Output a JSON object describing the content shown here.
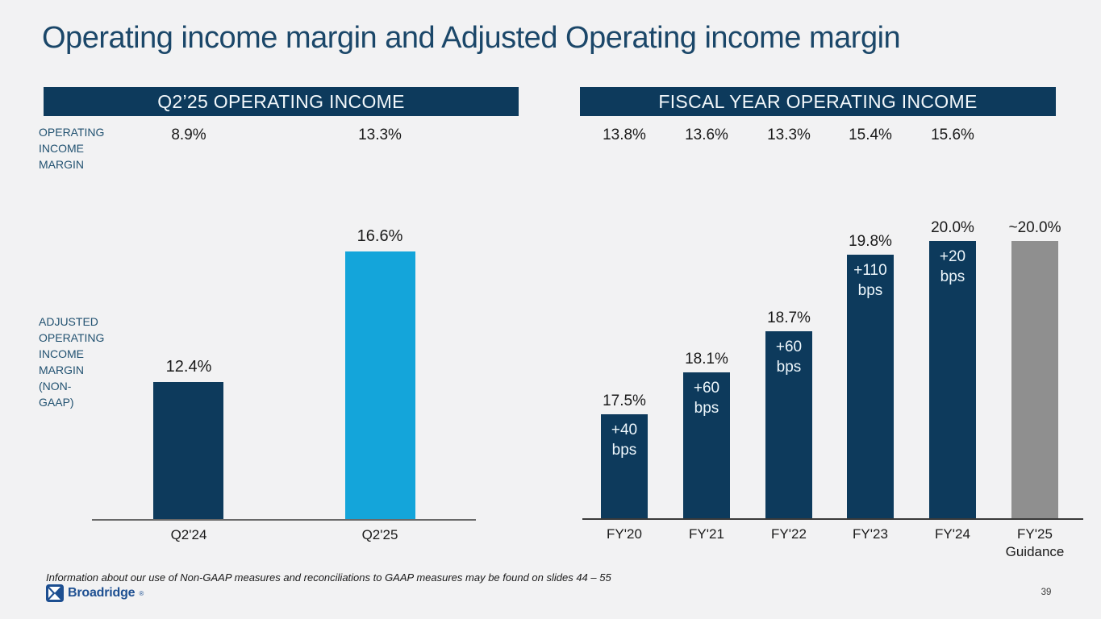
{
  "slide": {
    "title": "Operating income margin and Adjusted Operating income margin",
    "page_number": "39",
    "footnote": "Information about our use of Non-GAAP measures and reconciliations to GAAP measures may be found on slides 44 – 55",
    "logo": {
      "text": "Broadridge",
      "mark": "®"
    }
  },
  "labels": {
    "operating_income_margin": [
      "OPERATING",
      "INCOME",
      "MARGIN"
    ],
    "adjusted_operating_income_margin": [
      "ADJUSTED",
      "OPERATING",
      "INCOME",
      "MARGIN",
      "(NON-",
      "GAAP)"
    ]
  },
  "colors": {
    "background": "#f2f2f3",
    "navy": "#0d3a5c",
    "cyan": "#14a5da",
    "gray": "#8f8f8f",
    "header_bg": "#0d3a5c",
    "title_text": "#1b4769",
    "side_label_text": "#225271",
    "value_text": "#1a1a1a",
    "bps_text": "#eef7fc",
    "axis_left": "#696969",
    "axis_right": "#3a3a3a"
  },
  "chart_data": [
    {
      "type": "bar",
      "title": "Q2’25 OPERATING INCOME",
      "categories": [
        "Q2'24",
        "Q2'25"
      ],
      "series": [
        {
          "name": "OPERATING INCOME MARGIN",
          "unit": "%",
          "values": [
            8.9,
            13.3
          ],
          "rendered_as": "text_row"
        },
        {
          "name": "ADJUSTED OPERATING INCOME MARGIN (NON-GAAP)",
          "unit": "%",
          "values": [
            12.4,
            16.6
          ],
          "rendered_as": "bars"
        }
      ],
      "margin_row_labels": [
        "8.9%",
        "13.3%"
      ],
      "bar_value_labels": [
        "12.4%",
        "16.6%"
      ],
      "bps_annotations": [
        "",
        ""
      ],
      "bar_colors": [
        "#0d3a5c",
        "#14a5da"
      ],
      "ylim": [
        8,
        18
      ],
      "grid": false,
      "legend": "none"
    },
    {
      "type": "bar",
      "title": "FISCAL YEAR OPERATING INCOME",
      "categories": [
        "FY'20",
        "FY'21",
        "FY'22",
        "FY'23",
        "FY'24",
        "FY'25 Guidance"
      ],
      "series": [
        {
          "name": "OPERATING INCOME MARGIN",
          "unit": "%",
          "values": [
            13.8,
            13.6,
            13.3,
            15.4,
            15.6,
            null
          ],
          "rendered_as": "text_row"
        },
        {
          "name": "ADJUSTED OPERATING INCOME MARGIN (NON-GAAP)",
          "unit": "%",
          "values": [
            17.5,
            18.1,
            18.7,
            19.8,
            20.0,
            20.0
          ],
          "rendered_as": "bars"
        }
      ],
      "margin_row_labels": [
        "13.8%",
        "13.6%",
        "13.3%",
        "15.4%",
        "15.6%",
        ""
      ],
      "bar_value_labels": [
        "17.5%",
        "18.1%",
        "18.7%",
        "19.8%",
        "20.0%",
        "~20.0%"
      ],
      "bps_annotations": [
        "+40 bps",
        "+60 bps",
        "+60 bps",
        "+110 bps",
        "+20 bps",
        ""
      ],
      "bar_colors": [
        "#0d3a5c",
        "#0d3a5c",
        "#0d3a5c",
        "#0d3a5c",
        "#0d3a5c",
        "#8f8f8f"
      ],
      "ylim": [
        16,
        21
      ],
      "grid": false,
      "legend": "none"
    }
  ]
}
